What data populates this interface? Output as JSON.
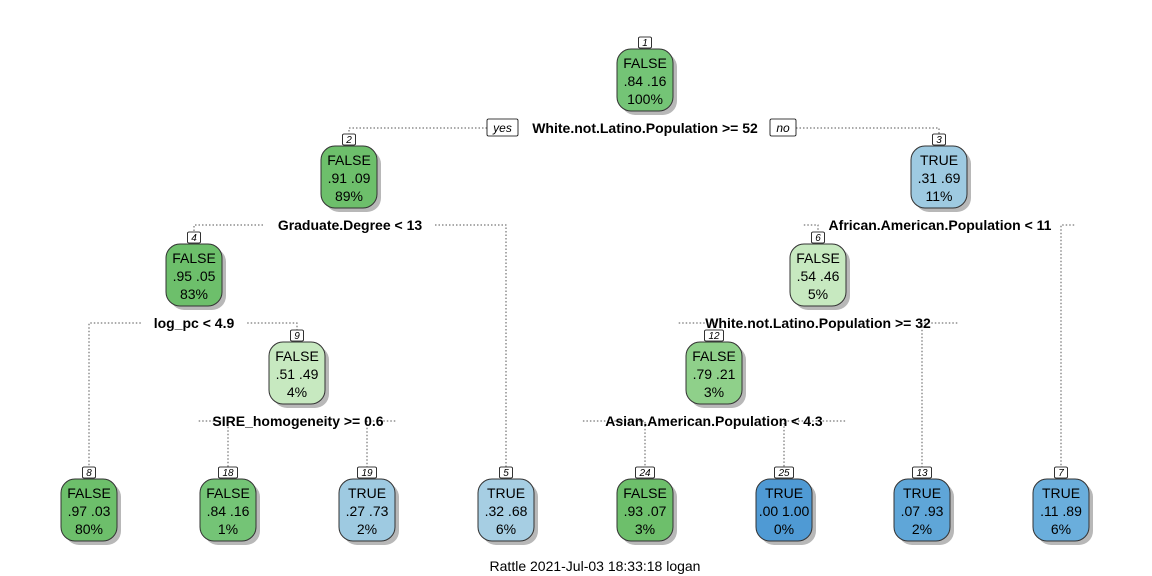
{
  "tree": {
    "edge_labels": {
      "yes": "yes",
      "no": "no"
    },
    "nodes": [
      {
        "id": "1",
        "class": "FALSE",
        "probs": ".84  .16",
        "pct": "100%",
        "color": "#74c476"
      },
      {
        "id": "2",
        "class": "FALSE",
        "probs": ".91  .09",
        "pct": "89%",
        "color": "#6dbf6b"
      },
      {
        "id": "3",
        "class": "TRUE",
        "probs": ".31  .69",
        "pct": "11%",
        "color": "#9ecae1"
      },
      {
        "id": "4",
        "class": "FALSE",
        "probs": ".95  .05",
        "pct": "83%",
        "color": "#6dbf6b"
      },
      {
        "id": "6",
        "class": "FALSE",
        "probs": ".54  .46",
        "pct": "5%",
        "color": "#c7e9c0"
      },
      {
        "id": "9",
        "class": "FALSE",
        "probs": ".51  .49",
        "pct": "4%",
        "color": "#c7e9c0"
      },
      {
        "id": "12",
        "class": "FALSE",
        "probs": ".79  .21",
        "pct": "3%",
        "color": "#8fd08a"
      },
      {
        "id": "8",
        "class": "FALSE",
        "probs": ".97  .03",
        "pct": "80%",
        "color": "#6dbf6b"
      },
      {
        "id": "18",
        "class": "FALSE",
        "probs": ".84  .16",
        "pct": "1%",
        "color": "#74c476"
      },
      {
        "id": "19",
        "class": "TRUE",
        "probs": ".27  .73",
        "pct": "2%",
        "color": "#9ecae1"
      },
      {
        "id": "5",
        "class": "TRUE",
        "probs": ".32  .68",
        "pct": "6%",
        "color": "#a6cee3"
      },
      {
        "id": "24",
        "class": "FALSE",
        "probs": ".93  .07",
        "pct": "3%",
        "color": "#6dbf6b"
      },
      {
        "id": "25",
        "class": "TRUE",
        "probs": ".00  1.00",
        "pct": "0%",
        "color": "#4f9ad4"
      },
      {
        "id": "13",
        "class": "TRUE",
        "probs": ".07  .93",
        "pct": "2%",
        "color": "#5fa6d8"
      },
      {
        "id": "7",
        "class": "TRUE",
        "probs": ".11  .89",
        "pct": "6%",
        "color": "#6aaedc"
      }
    ],
    "splits": [
      {
        "node": "1",
        "label": "White.not.Latino.Population >= 52"
      },
      {
        "node": "2",
        "label": "Graduate.Degree < 13"
      },
      {
        "node": "3",
        "label": "African.American.Population < 11"
      },
      {
        "node": "4",
        "label": "log_pc < 4.9"
      },
      {
        "node": "6",
        "label": "White.not.Latino.Population >= 32"
      },
      {
        "node": "9",
        "label": "SIRE_homogeneity >= 0.6"
      },
      {
        "node": "12",
        "label": "Asian.American.Population < 4.3"
      }
    ]
  },
  "footer": "Rattle 2021-Jul-03 18:33:18 logan"
}
